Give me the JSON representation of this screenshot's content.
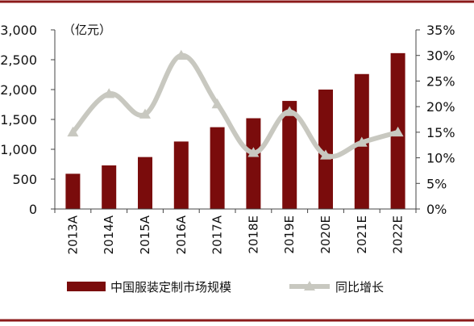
{
  "colors": {
    "frame": "#8b1a1a",
    "bar": "#7a0c0c",
    "line": "#c8c8c0",
    "axis": "#444444",
    "text": "#111111"
  },
  "chart_data": {
    "type": "bar",
    "categories": [
      "2013A",
      "2014A",
      "2015A",
      "2016A",
      "2017A",
      "2018E",
      "2019E",
      "2020E",
      "2021E",
      "2022E"
    ],
    "unit_label": "（亿元）",
    "left_axis": {
      "ylim": [
        0,
        3000
      ],
      "ticks": [
        "0",
        "500",
        "1,000",
        "1,500",
        "2,000",
        "2,500",
        "3,000"
      ]
    },
    "right_axis": {
      "ylim": [
        0,
        35
      ],
      "ticks": [
        "0%",
        "5%",
        "10%",
        "15%",
        "20%",
        "25%",
        "30%",
        "35%"
      ]
    },
    "series": [
      {
        "name": "中国服装定制市场规模",
        "type": "bar",
        "axis": "left",
        "values": [
          590,
          730,
          870,
          1130,
          1370,
          1520,
          1810,
          2000,
          2260,
          2610
        ]
      },
      {
        "name": "同比增长",
        "type": "line",
        "axis": "right",
        "marker": "triangle",
        "values": [
          15.0,
          22.5,
          18.5,
          30.0,
          20.5,
          11.0,
          19.0,
          10.5,
          13.0,
          15.0
        ]
      }
    ],
    "legend": {
      "position": "bottom",
      "items": [
        "中国服装定制市场规模",
        "同比增长"
      ]
    },
    "grid": false
  }
}
